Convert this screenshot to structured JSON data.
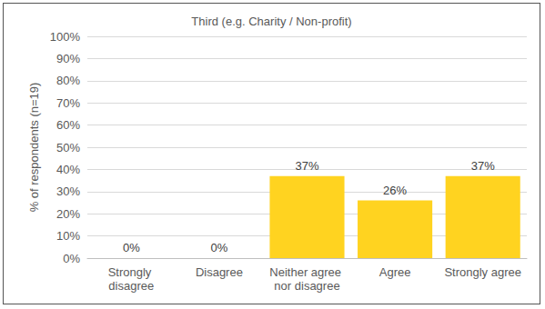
{
  "chart_data": {
    "type": "bar",
    "title": "Third (e.g. Charity / Non-profit)",
    "y_label": "% of respondents (n=19)",
    "categories": [
      "Strongly disagree",
      "Disagree",
      "Neither agree nor disagree",
      "Agree",
      "Strongly agree"
    ],
    "values": [
      0,
      0,
      37,
      26,
      37
    ],
    "value_labels": [
      "0%",
      "0%",
      "37%",
      "26%",
      "37%"
    ],
    "color": "#ffd320",
    "ylim": [
      0,
      100
    ],
    "yticks": [
      {
        "value": 0,
        "label": "0%"
      },
      {
        "value": 10,
        "label": "10%"
      },
      {
        "value": 20,
        "label": "20%"
      },
      {
        "value": 30,
        "label": "30%"
      },
      {
        "value": 40,
        "label": "40%"
      },
      {
        "value": 50,
        "label": "50%"
      },
      {
        "value": 60,
        "label": "60%"
      },
      {
        "value": 70,
        "label": "70%"
      },
      {
        "value": 80,
        "label": "80%"
      },
      {
        "value": 90,
        "label": "90%"
      },
      {
        "value": 100,
        "label": "100%"
      }
    ],
    "grid": true,
    "data_labels": true
  }
}
